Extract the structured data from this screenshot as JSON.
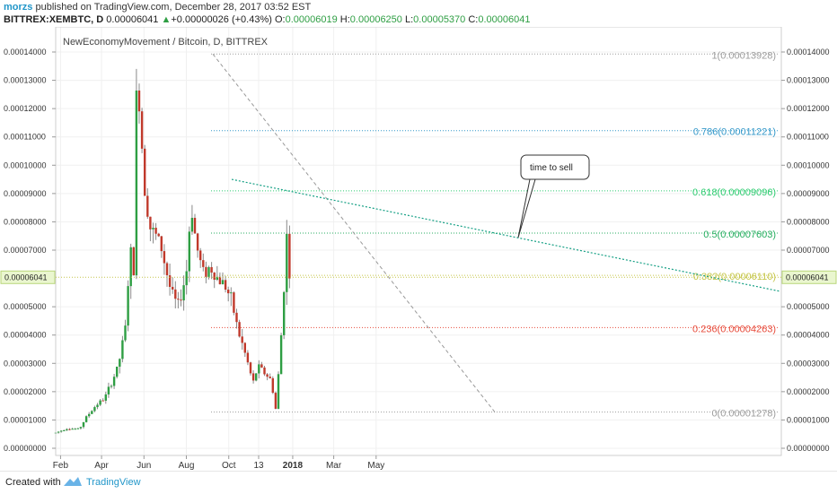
{
  "header": {
    "author": "morzs",
    "published_text": "published on TradingView.com, December 28, 2017 03:52 EST",
    "symbol": "BITTREX:XEMBTC, D",
    "last": "0.00006041",
    "change_arrow": "▲",
    "change": "+0.00000026 (+0.43%)",
    "open_label": "O:",
    "open": "0.00006019",
    "high_label": "H:",
    "high": "0.00006250",
    "low_label": "L:",
    "low": "0.00005370",
    "close_label": "C:",
    "close": "0.00006041"
  },
  "footer": {
    "created_with": "Created with",
    "brand": "TradingView"
  },
  "colors": {
    "up": "#2e9e43",
    "down": "#c0392b",
    "wick": "#8a8a8a",
    "trend_green": "#16a085",
    "grid": "#f0f0f0"
  },
  "chart_data": {
    "type": "candlestick",
    "title": "NewEconomyMovement / Bitcoin, D, BITTREX",
    "x_axis_labels": [
      "Feb",
      "Apr",
      "Jun",
      "Aug",
      "Oct",
      "13",
      "2018",
      "Mar",
      "May"
    ],
    "y_ticks": [
      "0.00014000",
      "0.00013000",
      "0.00012000",
      "0.00011000",
      "0.00010000",
      "0.00009000",
      "0.00008000",
      "0.00007000",
      "0.00005000",
      "0.00004000",
      "0.00003000",
      "0.00002000",
      "0.00001000",
      "0.00000000"
    ],
    "ylim": [
      0,
      0.0001475
    ],
    "current_price_label": "0.00006041",
    "current_price": 6.041e-05,
    "fib_levels": [
      {
        "label": "1(0.00013928)",
        "value": 0.00013928,
        "color": "#9e9e9e"
      },
      {
        "label": "0.786(0.00011221)",
        "value": 0.00011221,
        "color": "#3498c9"
      },
      {
        "label": "0.618(0.00009096)",
        "value": 9.096e-05,
        "color": "#2ecc71"
      },
      {
        "label": "0.5(0.00007603)",
        "value": 7.603e-05,
        "color": "#27ae60"
      },
      {
        "label": "0.382(0.00006110)",
        "value": 6.11e-05,
        "color": "#c6c64a"
      },
      {
        "label": "0.236(0.00004263)",
        "value": 4.263e-05,
        "color": "#e74c3c"
      },
      {
        "label": "0(0.00001278)",
        "value": 1.278e-05,
        "color": "#9e9e9e"
      }
    ],
    "annotation": "time to sell",
    "price_series": [
      {
        "t": "Jan 25",
        "v": 5.5e-06
      },
      {
        "t": "Feb 10",
        "v": 7e-06
      },
      {
        "t": "Feb 28",
        "v": 6.8e-06
      },
      {
        "t": "Mar 10",
        "v": 1.1e-05
      },
      {
        "t": "Mar 25",
        "v": 1.55e-05
      },
      {
        "t": "Apr 5",
        "v": 1.75e-05
      },
      {
        "t": "Apr 15",
        "v": 2.3e-05
      },
      {
        "t": "Apr 25",
        "v": 2.9e-05
      },
      {
        "t": "May 5",
        "v": 4.2e-05
      },
      {
        "t": "May 12",
        "v": 7e-05
      },
      {
        "t": "May 18",
        "v": 6.2e-05
      },
      {
        "t": "May 22",
        "v": 0.000139
      },
      {
        "t": "May 26",
        "v": 0.00012
      },
      {
        "t": "Jun 1",
        "v": 9.5e-05
      },
      {
        "t": "Jun 10",
        "v": 7.8e-05
      },
      {
        "t": "Jun 25",
        "v": 7.2e-05
      },
      {
        "t": "Jul 10",
        "v": 5.5e-05
      },
      {
        "t": "Jul 20",
        "v": 5e-05
      },
      {
        "t": "Aug 1",
        "v": 6.2e-05
      },
      {
        "t": "Aug 8",
        "v": 8.7e-05
      },
      {
        "t": "Aug 15",
        "v": 7.2e-05
      },
      {
        "t": "Aug 25",
        "v": 6.2e-05
      },
      {
        "t": "Sep 5",
        "v": 6.4e-05
      },
      {
        "t": "Sep 15",
        "v": 6e-05
      },
      {
        "t": "Sep 25",
        "v": 5.8e-05
      },
      {
        "t": "Oct 5",
        "v": 5.2e-05
      },
      {
        "t": "Oct 15",
        "v": 4.1e-05
      },
      {
        "t": "Oct 25",
        "v": 3.3e-05
      },
      {
        "t": "Nov 5",
        "v": 2.3e-05
      },
      {
        "t": "Nov 12",
        "v": 2.9e-05
      },
      {
        "t": "Nov 20",
        "v": 2.7e-05
      },
      {
        "t": "Dec 1",
        "v": 2.4e-05
      },
      {
        "t": "Dec 8",
        "v": 1.3e-05
      },
      {
        "t": "Dec 12",
        "v": 2.8e-05
      },
      {
        "t": "Dec 16",
        "v": 4.2e-05
      },
      {
        "t": "Dec 20",
        "v": 6e-05
      },
      {
        "t": "Dec 23",
        "v": 7.6e-05
      },
      {
        "t": "Dec 28",
        "v": 6.04e-05
      }
    ]
  }
}
